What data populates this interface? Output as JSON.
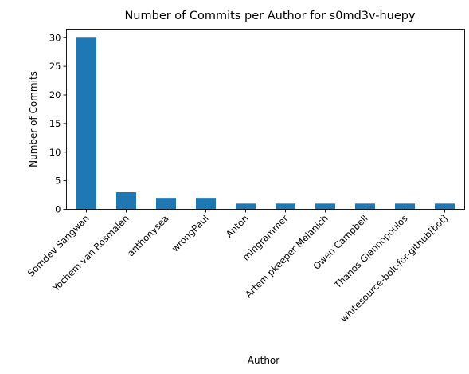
{
  "chart_data": {
    "type": "bar",
    "title": "Number of Commits per Author for s0md3v-huepy",
    "xlabel": "Author",
    "ylabel": "Number of Commits",
    "categories": [
      "Somdev Sangwan",
      "Yochem van Rosmalen",
      "anthonysea",
      "wrongPaul",
      "Anton",
      "mingrammer",
      "Artem pkeeper Melanich",
      "Owen Campbell",
      "Thanos Giannopoulos",
      "whitesource-bolt-for-github[bot]"
    ],
    "values": [
      30,
      3,
      2,
      2,
      1,
      1,
      1,
      1,
      1,
      1
    ],
    "ylim": [
      0,
      31.5
    ],
    "yticks": [
      0,
      5,
      10,
      15,
      20,
      25,
      30
    ],
    "bar_color": "#1f77b4",
    "grid": false,
    "legend": "none"
  }
}
